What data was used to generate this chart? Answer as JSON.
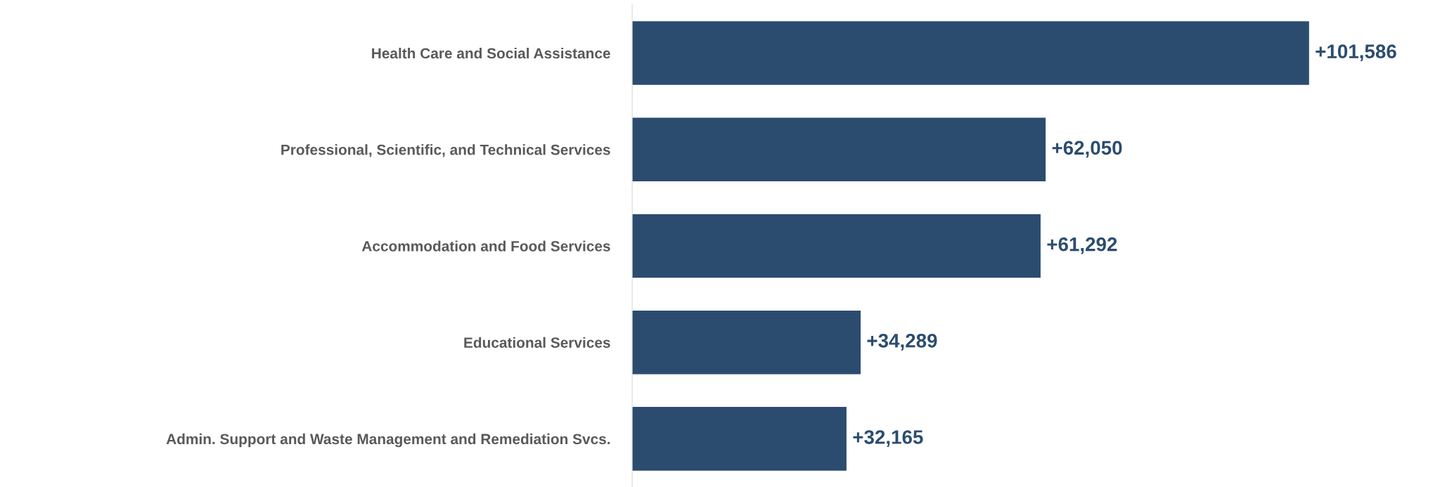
{
  "chart_data": {
    "type": "bar",
    "orientation": "horizontal",
    "categories": [
      "Health Care and Social Assistance",
      "Professional, Scientific, and Technical Services",
      "Accommodation and Food Services",
      "Educational Services",
      "Admin. Support and Waste Management and Remediation Svcs."
    ],
    "values": [
      101586,
      62050,
      61292,
      34289,
      32165
    ],
    "value_labels": [
      "+101,586",
      "+62,050",
      "+61,292",
      "+34,289",
      "+32,165"
    ],
    "color": "#2b4c6f",
    "grid": false,
    "legend": false,
    "tick_labels": "y"
  }
}
